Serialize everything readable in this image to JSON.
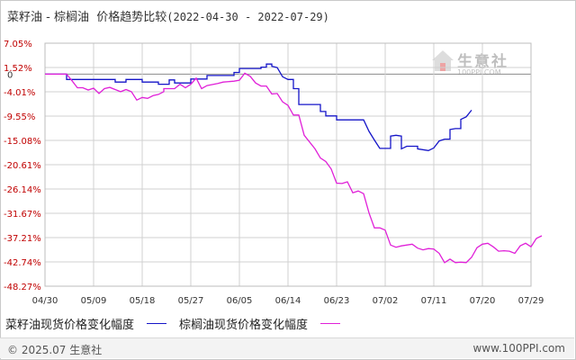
{
  "title": {
    "products": "菜籽油 - 棕榈油",
    "label": "价格趋势比较",
    "range": "(2022-04-30 - 2022-07-29)"
  },
  "legend": {
    "s1": "菜籽油现货价格变化幅度",
    "s2": "棕榈油现货价格变化幅度"
  },
  "footer": {
    "copyright": "© 2025.07 生意社",
    "url": "www.100PPI.com"
  },
  "watermark": {
    "text": "生意社",
    "url": "100PPI.COM"
  },
  "colors": {
    "s1": "#1515c8",
    "s2": "#e020d8",
    "grid": "#d0d0d0",
    "zero": "#8c8c8c",
    "axisText": "#c00000"
  },
  "chart_data": {
    "type": "line",
    "ylim": [
      -48.27,
      7.05
    ],
    "y_ticks": [
      "7.05%",
      "1.52%",
      "0",
      "-4.01%",
      "-9.55%",
      "-15.08%",
      "-20.61%",
      "-26.14%",
      "-31.67%",
      "-37.21%",
      "-42.74%",
      "-48.27%"
    ],
    "y_tick_values": [
      7.05,
      1.52,
      0,
      -4.01,
      -9.55,
      -15.08,
      -20.61,
      -26.14,
      -31.67,
      -37.21,
      -42.74,
      -48.27
    ],
    "x_ticks": [
      "04/30",
      "05/09",
      "05/18",
      "05/27",
      "06/05",
      "06/14",
      "06/23",
      "07/02",
      "07/11",
      "07/20",
      "07/29"
    ],
    "x_tick_days": [
      0,
      9,
      18,
      27,
      36,
      45,
      54,
      63,
      72,
      81,
      90
    ],
    "series": [
      {
        "name": "菜籽油现货价格变化幅度",
        "points": [
          [
            0,
            0
          ],
          [
            4,
            0
          ],
          [
            4,
            -1.2
          ],
          [
            13,
            -1.2
          ],
          [
            13,
            -1.8
          ],
          [
            15,
            -1.8
          ],
          [
            15,
            -1.2
          ],
          [
            18,
            -1.2
          ],
          [
            18,
            -1.8
          ],
          [
            21,
            -1.8
          ],
          [
            21,
            -2.3
          ],
          [
            23,
            -2.3
          ],
          [
            23,
            -1.3
          ],
          [
            24,
            -1.3
          ],
          [
            24,
            -2.0
          ],
          [
            27,
            -2.0
          ],
          [
            27,
            -1.1
          ],
          [
            30,
            -1.1
          ],
          [
            30,
            -0.3
          ],
          [
            35,
            -0.3
          ],
          [
            35,
            0.4
          ],
          [
            36,
            0.4
          ],
          [
            36,
            1.3
          ],
          [
            40,
            1.3
          ],
          [
            40,
            1.6
          ],
          [
            41,
            1.6
          ],
          [
            41,
            2.3
          ],
          [
            42,
            2.3
          ],
          [
            42,
            1.8
          ],
          [
            43,
            1.5
          ],
          [
            44,
            -0.6
          ],
          [
            45,
            -1.2
          ],
          [
            46,
            -1.2
          ],
          [
            46,
            -3.3
          ],
          [
            47,
            -3.3
          ],
          [
            47,
            -6.9
          ],
          [
            51,
            -6.9
          ],
          [
            51,
            -8.5
          ],
          [
            52,
            -8.5
          ],
          [
            52,
            -9.5
          ],
          [
            54,
            -9.5
          ],
          [
            54,
            -10.4
          ],
          [
            59,
            -10.4
          ],
          [
            60,
            -13.0
          ],
          [
            61,
            -15.0
          ],
          [
            62,
            -16.9
          ],
          [
            64,
            -16.9
          ],
          [
            64,
            -14.1
          ],
          [
            65,
            -13.9
          ],
          [
            66,
            -14.1
          ],
          [
            66,
            -17.0
          ],
          [
            67,
            -16.4
          ],
          [
            69,
            -16.4
          ],
          [
            69,
            -17.0
          ],
          [
            71,
            -17.4
          ],
          [
            72,
            -16.8
          ],
          [
            73,
            -15.2
          ],
          [
            74,
            -14.8
          ],
          [
            75,
            -14.8
          ],
          [
            75,
            -12.6
          ],
          [
            76,
            -12.4
          ],
          [
            77,
            -12.4
          ],
          [
            77,
            -10.3
          ],
          [
            78,
            -9.7
          ],
          [
            79,
            -8.2
          ]
        ]
      },
      {
        "name": "棕榈油现货价格变化幅度",
        "points": [
          [
            0,
            0
          ],
          [
            4,
            0
          ],
          [
            5,
            -1.5
          ],
          [
            6,
            -3.1
          ],
          [
            7,
            -3.1
          ],
          [
            8,
            -3.6
          ],
          [
            9,
            -3.2
          ],
          [
            10,
            -4.4
          ],
          [
            11,
            -3.3
          ],
          [
            12,
            -3.0
          ],
          [
            14,
            -4.0
          ],
          [
            15,
            -3.5
          ],
          [
            16,
            -4.0
          ],
          [
            17,
            -5.9
          ],
          [
            18,
            -5.3
          ],
          [
            19,
            -5.5
          ],
          [
            20,
            -4.9
          ],
          [
            21,
            -4.6
          ],
          [
            22,
            -4.0
          ],
          [
            22,
            -3.3
          ],
          [
            24,
            -3.3
          ],
          [
            25,
            -2.3
          ],
          [
            26,
            -3.1
          ],
          [
            27,
            -2.3
          ],
          [
            28,
            -0.9
          ],
          [
            29,
            -3.3
          ],
          [
            30,
            -2.6
          ],
          [
            32,
            -2.1
          ],
          [
            33,
            -1.8
          ],
          [
            35,
            -1.6
          ],
          [
            36,
            -1.4
          ],
          [
            37,
            0.2
          ],
          [
            38,
            -0.5
          ],
          [
            39,
            -2.0
          ],
          [
            40,
            -2.7
          ],
          [
            41,
            -2.7
          ],
          [
            42,
            -4.5
          ],
          [
            43,
            -4.4
          ],
          [
            44,
            -6.3
          ],
          [
            45,
            -7.1
          ],
          [
            46,
            -9.3
          ],
          [
            47,
            -9.3
          ],
          [
            48,
            -13.9
          ],
          [
            50,
            -17.0
          ],
          [
            51,
            -19.1
          ],
          [
            52,
            -19.9
          ],
          [
            53,
            -21.6
          ],
          [
            54,
            -24.8
          ],
          [
            55,
            -24.9
          ],
          [
            56,
            -24.5
          ],
          [
            57,
            -27.0
          ],
          [
            58,
            -26.6
          ],
          [
            59,
            -27.2
          ],
          [
            60,
            -31.6
          ],
          [
            61,
            -35.0
          ],
          [
            62,
            -35.0
          ],
          [
            63,
            -35.5
          ],
          [
            64,
            -38.9
          ],
          [
            65,
            -39.4
          ],
          [
            66,
            -39.1
          ],
          [
            68,
            -38.7
          ],
          [
            69,
            -39.6
          ],
          [
            70,
            -40.0
          ],
          [
            71,
            -39.7
          ],
          [
            72,
            -39.8
          ],
          [
            73,
            -40.8
          ],
          [
            74,
            -42.9
          ],
          [
            75,
            -42.1
          ],
          [
            76,
            -42.9
          ],
          [
            77,
            -42.8
          ],
          [
            78,
            -42.9
          ],
          [
            79,
            -41.7
          ],
          [
            80,
            -39.5
          ],
          [
            81,
            -38.7
          ],
          [
            82,
            -38.5
          ],
          [
            83,
            -39.3
          ],
          [
            84,
            -40.3
          ],
          [
            85,
            -40.2
          ],
          [
            86,
            -40.3
          ],
          [
            87,
            -40.8
          ],
          [
            88,
            -39.1
          ],
          [
            89,
            -38.5
          ],
          [
            90,
            -39.3
          ],
          [
            91,
            -37.4
          ],
          [
            92,
            -36.8
          ]
        ]
      }
    ]
  }
}
